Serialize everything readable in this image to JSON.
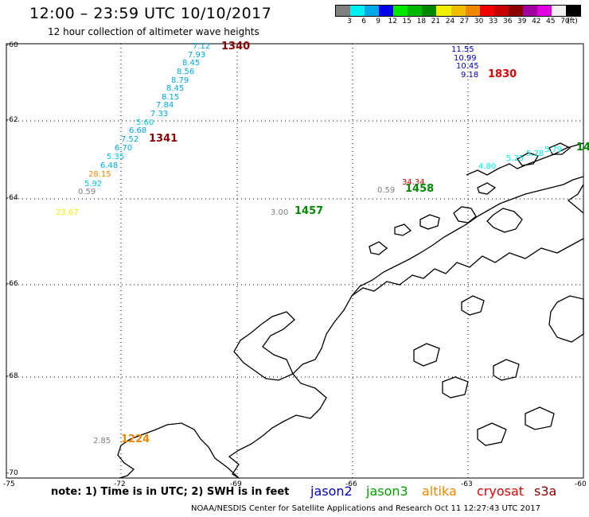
{
  "header": {
    "title": "12:00 – 23:59 UTC 10/10/2017",
    "subtitle": "12 hour collection of altimeter wave heights"
  },
  "colorbar": {
    "unit": "(ft)",
    "swatches": [
      {
        "color": "#7f7f7f",
        "label": "3"
      },
      {
        "color": "#00f0f0",
        "label": "6"
      },
      {
        "color": "#00a8e8",
        "label": "9"
      },
      {
        "color": "#0000e8",
        "label": "12"
      },
      {
        "color": "#00e800",
        "label": "15"
      },
      {
        "color": "#00b800",
        "label": "18"
      },
      {
        "color": "#008800",
        "label": "21"
      },
      {
        "color": "#f0f000",
        "label": "24"
      },
      {
        "color": "#f0c000",
        "label": "27"
      },
      {
        "color": "#f08800",
        "label": "30"
      },
      {
        "color": "#f00000",
        "label": "33"
      },
      {
        "color": "#c80000",
        "label": "36"
      },
      {
        "color": "#8c0000",
        "label": "39"
      },
      {
        "color": "#a000a0",
        "label": "42"
      },
      {
        "color": "#e000e0",
        "label": "45"
      },
      {
        "color": "#f0f0f0",
        "label": "70"
      },
      {
        "color": "#000000",
        "label": ""
      }
    ]
  },
  "axes": {
    "lat_labels": [
      "-60",
      "-62",
      "-64",
      "-66",
      "-68",
      "-70"
    ],
    "lon_labels": [
      "-75",
      "-72",
      "-69",
      "-66",
      "-63",
      "-60"
    ]
  },
  "measurements": [
    {
      "v": "7.12",
      "c": "#00a8e8"
    },
    {
      "v": "7.93",
      "c": "#00a8e8"
    },
    {
      "v": "8.45",
      "c": "#00a8e8"
    },
    {
      "v": "8.56",
      "c": "#00a8e8"
    },
    {
      "v": "8.79",
      "c": "#00a8e8"
    },
    {
      "v": "8.45",
      "c": "#00a8e8"
    },
    {
      "v": "8.15",
      "c": "#00a8e8"
    },
    {
      "v": "7.84",
      "c": "#00a8e8"
    },
    {
      "v": "7.33",
      "c": "#00a8e8"
    },
    {
      "v": "5.60",
      "c": "#00c8f0"
    },
    {
      "v": "6.68",
      "c": "#00a8e8"
    },
    {
      "v": "7.52",
      "c": "#00a8e8"
    },
    {
      "v": "6.70",
      "c": "#00a8e8"
    },
    {
      "v": "5.35",
      "c": "#00c8f0"
    },
    {
      "v": "6.48",
      "c": "#00a8e8"
    },
    {
      "v": "28.15",
      "c": "#f08800"
    },
    {
      "v": "5.92",
      "c": "#00c8f0"
    },
    {
      "v": "0.59",
      "c": "#7f7f7f"
    },
    {
      "v": "23.67",
      "c": "#f0f000"
    },
    {
      "v": "11.55",
      "c": "#0000c8"
    },
    {
      "v": "10.99",
      "c": "#0000c8"
    },
    {
      "v": "10.45",
      "c": "#0000c8"
    },
    {
      "v": "9.18",
      "c": "#0000c8"
    },
    {
      "v": "34.34",
      "c": "#c80000"
    },
    {
      "v": "0.59",
      "c": "#7f7f7f"
    },
    {
      "v": "3.00",
      "c": "#7f7f7f"
    },
    {
      "v": "4.80",
      "c": "#00f0f0"
    },
    {
      "v": "5.25",
      "c": "#00f0f0"
    },
    {
      "v": "5.28",
      "c": "#00f0f0"
    },
    {
      "v": "5.79",
      "c": "#00f0f0"
    },
    {
      "v": "2.85",
      "c": "#7f7f7f"
    }
  ],
  "pass_times": [
    {
      "v": "1340",
      "c": "#8c0000"
    },
    {
      "v": "1341",
      "c": "#8c0000"
    },
    {
      "v": "1830",
      "c": "#e00000"
    },
    {
      "v": "1458",
      "c": "#008800"
    },
    {
      "v": "1457",
      "c": "#008800"
    },
    {
      "v": "14",
      "c": "#008800"
    },
    {
      "v": "1224",
      "c": "#f08800"
    }
  ],
  "footer": {
    "note": "note: 1) Time is in UTC; 2) SWH is in feet",
    "credit": "NOAA/NESDIS Center for Satellite Applications and Research    Oct 11 12:27:43 UTC 2017",
    "satellites": [
      {
        "name": "jason2",
        "c": "#0000c8"
      },
      {
        "name": "jason3",
        "c": "#00a000"
      },
      {
        "name": "altika",
        "c": "#f08800"
      },
      {
        "name": "cryosat",
        "c": "#e00000"
      },
      {
        "name": "s3a",
        "c": "#8c0000"
      }
    ]
  }
}
